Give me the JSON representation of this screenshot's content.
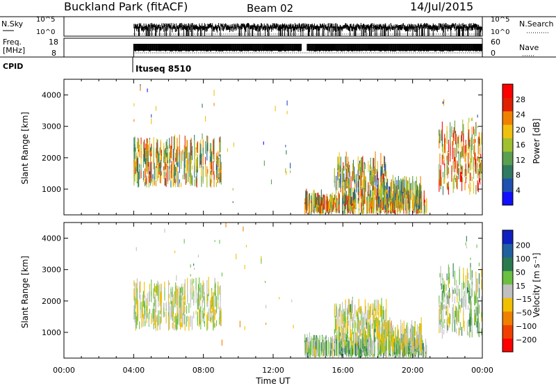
{
  "header": {
    "station": "Buckland Park (fitACF)",
    "beam": "Beam 02",
    "date": "14/Jul/2015"
  },
  "summary": {
    "nsky_label_top": "N.Sky",
    "nsky_ticks": [
      "10^5",
      "10^0"
    ],
    "nsearch_label": "N.Search",
    "nsearch_ticks": [
      "10^5",
      "10^0"
    ],
    "freq_label_top": "Freq.",
    "freq_label_bottom": "[MHz]",
    "freq_ticks": [
      "18",
      "8"
    ],
    "nave_label": "Nave",
    "nave_ticks": [
      "60",
      "0"
    ],
    "cpid_label": "CPID",
    "cpid_value": "Ituseq 8510"
  },
  "chart_data": [
    {
      "type": "heatmap",
      "panel": "power",
      "ylabel": "Slant Range [km]",
      "yticks": [
        1000,
        2000,
        3000,
        4000
      ],
      "ylim": [
        180,
        4500
      ],
      "xlim_hours": [
        0,
        24
      ],
      "colorbar": {
        "label": "Power [dB]",
        "ticks": [
          4,
          8,
          12,
          16,
          20,
          24,
          28
        ],
        "range": [
          0,
          32
        ],
        "colors": [
          "#1010ff",
          "#2050b0",
          "#2f7a60",
          "#5aa050",
          "#a0c030",
          "#f0c010",
          "#f08000",
          "#e02000",
          "#ff0000"
        ]
      },
      "echo_regions": [
        {
          "t": [
            4.0,
            9.0
          ],
          "r": [
            1050,
            2300
          ],
          "value": 17
        },
        {
          "t": [
            4.0,
            9.0
          ],
          "r": [
            2300,
            4200
          ],
          "value": 14,
          "sparse": true
        },
        {
          "t": [
            13.8,
            20.8
          ],
          "r": [
            190,
            500
          ],
          "value": 19
        },
        {
          "t": [
            15.5,
            18.5
          ],
          "r": [
            500,
            1700
          ],
          "value": 16
        },
        {
          "t": [
            18.0,
            20.5
          ],
          "r": [
            300,
            1000
          ],
          "value": 14
        },
        {
          "t": [
            21.5,
            24.0
          ],
          "r": [
            800,
            2800
          ],
          "value": 21
        },
        {
          "t": [
            21.5,
            24.0
          ],
          "r": [
            2800,
            3900
          ],
          "value": 12,
          "sparse": true
        },
        {
          "t": [
            9.0,
            13.8
          ],
          "r": [
            200,
            4400
          ],
          "value": 12,
          "sparse": true
        }
      ]
    },
    {
      "type": "heatmap",
      "panel": "velocity",
      "ylabel": "Slant Range [km]",
      "yticks": [
        1000,
        2000,
        3000,
        4000
      ],
      "ylim": [
        180,
        4500
      ],
      "xlim_hours": [
        0,
        24
      ],
      "xticks": [
        "00:00",
        "04:00",
        "08:00",
        "12:00",
        "16:00",
        "20:00",
        "00:00"
      ],
      "xlabel": "Time UT",
      "colorbar": {
        "label": "Velocity [m s⁻¹]",
        "ticks": [
          "200",
          "100",
          "50",
          "15",
          "−15",
          "−50",
          "−100",
          "−200"
        ],
        "colors": [
          "#1020c0",
          "#2060a0",
          "#2a7a50",
          "#6ac040",
          "#c0c0c0",
          "#f0c000",
          "#f08000",
          "#f04000",
          "#ff0000"
        ]
      },
      "echo_regions": [
        {
          "t": [
            4.0,
            9.0
          ],
          "r": [
            1050,
            2300
          ],
          "value": 0
        },
        {
          "t": [
            4.0,
            9.0
          ],
          "r": [
            2300,
            4200
          ],
          "value": 20,
          "sparse": true
        },
        {
          "t": [
            13.8,
            20.8
          ],
          "r": [
            190,
            500
          ],
          "value": 40
        },
        {
          "t": [
            15.5,
            18.5
          ],
          "r": [
            500,
            1700
          ],
          "value": 5
        },
        {
          "t": [
            18.0,
            20.5
          ],
          "r": [
            300,
            1000
          ],
          "value": -5
        },
        {
          "t": [
            21.5,
            24.0
          ],
          "r": [
            800,
            2800
          ],
          "value": 30
        },
        {
          "t": [
            21.5,
            24.0
          ],
          "r": [
            2800,
            3900
          ],
          "value": 60,
          "sparse": true
        },
        {
          "t": [
            9.0,
            13.8
          ],
          "r": [
            200,
            4400
          ],
          "value": -30,
          "sparse": true
        }
      ]
    }
  ]
}
